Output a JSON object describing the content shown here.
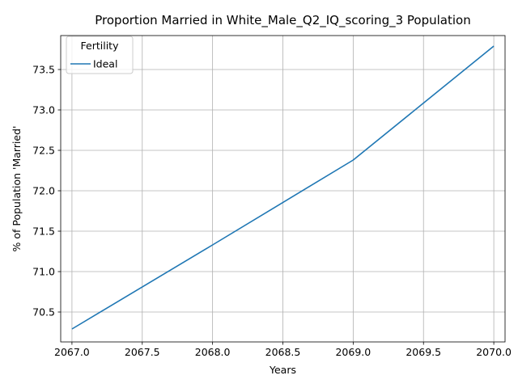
{
  "chart_data": {
    "type": "line",
    "title": "Proportion Married in White_Male_Q2_IQ_scoring_3 Population",
    "xlabel": "Years",
    "ylabel": "% of Population 'Married'",
    "xlim": [
      2066.92,
      2070.08
    ],
    "ylim": [
      70.13,
      73.92
    ],
    "x_ticks": [
      2067.0,
      2067.5,
      2068.0,
      2068.5,
      2069.0,
      2069.5,
      2070.0
    ],
    "x_tick_labels": [
      "2067.0",
      "2067.5",
      "2068.0",
      "2068.5",
      "2069.0",
      "2069.5",
      "2070.0"
    ],
    "y_ticks": [
      70.5,
      71.0,
      71.5,
      72.0,
      72.5,
      73.0,
      73.5
    ],
    "y_tick_labels": [
      "70.5",
      "71.0",
      "71.5",
      "72.0",
      "72.5",
      "73.0",
      "73.5"
    ],
    "grid": true,
    "legend": {
      "title": "Fertility",
      "placement": "top-left"
    },
    "series": [
      {
        "name": "Ideal",
        "color": "#1f77b4",
        "x": [
          2067,
          2068,
          2069,
          2070
        ],
        "y": [
          70.29,
          71.33,
          72.38,
          73.79
        ]
      }
    ]
  }
}
